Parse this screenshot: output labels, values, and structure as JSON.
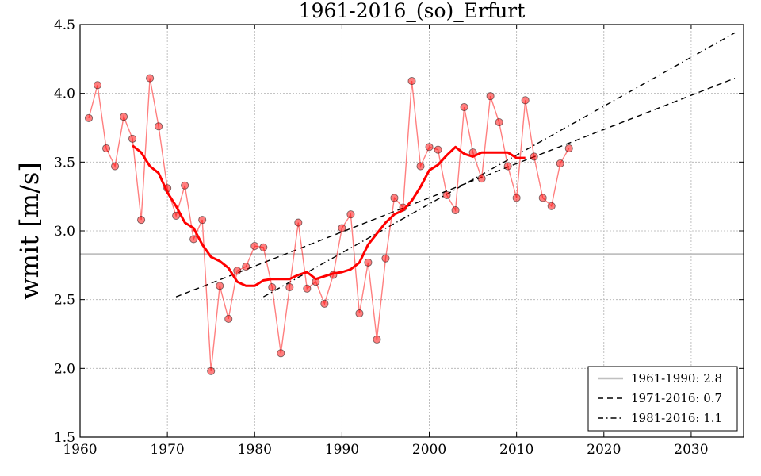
{
  "chart_data": {
    "type": "line",
    "title": "1961-2016_(so)_Erfurt",
    "xlabel": "",
    "ylabel": "wmit [m/s]",
    "xlim": [
      1960,
      2036
    ],
    "ylim": [
      1.5,
      4.5
    ],
    "xticks": [
      "1960",
      "1970",
      "1980",
      "1990",
      "2000",
      "2010",
      "2020",
      "2030"
    ],
    "yticks": [
      "1.5",
      "2.0",
      "2.5",
      "3.0",
      "3.5",
      "4.0",
      "4.5"
    ],
    "grid": true,
    "legend_position": "bottom-right",
    "series": [
      {
        "style": "markers-line",
        "color": "#ff0000",
        "x": [
          1961,
          1962,
          1963,
          1964,
          1965,
          1966,
          1967,
          1968,
          1969,
          1970,
          1971,
          1972,
          1973,
          1974,
          1975,
          1976,
          1977,
          1978,
          1979,
          1980,
          1981,
          1982,
          1983,
          1984,
          1985,
          1986,
          1987,
          1988,
          1989,
          1990,
          1991,
          1992,
          1993,
          1994,
          1995,
          1996,
          1997,
          1998,
          1999,
          2000,
          2001,
          2002,
          2003,
          2004,
          2005,
          2006,
          2007,
          2008,
          2009,
          2010,
          2011,
          2012,
          2013,
          2014,
          2015,
          2016
        ],
        "values": [
          3.82,
          4.06,
          3.6,
          3.47,
          3.83,
          3.67,
          3.08,
          4.11,
          3.76,
          3.31,
          3.11,
          3.33,
          2.94,
          3.08,
          1.98,
          2.6,
          2.36,
          2.71,
          2.74,
          2.89,
          2.88,
          2.59,
          2.11,
          2.59,
          3.06,
          2.58,
          2.63,
          2.47,
          2.68,
          3.02,
          3.12,
          2.4,
          2.77,
          2.21,
          2.8,
          3.24,
          3.17,
          4.09,
          3.47,
          3.61,
          3.59,
          3.26,
          3.15,
          3.9,
          3.57,
          3.38,
          3.98,
          3.79,
          3.47,
          3.24,
          3.95,
          3.54,
          3.24,
          3.18,
          3.49,
          3.6
        ]
      },
      {
        "style": "moving-average",
        "color": "#ff0000",
        "x": [
          1966,
          1967,
          1968,
          1969,
          1970,
          1971,
          1972,
          1973,
          1974,
          1975,
          1976,
          1977,
          1978,
          1979,
          1980,
          1981,
          1982,
          1983,
          1984,
          1985,
          1986,
          1987,
          1988,
          1989,
          1990,
          1991,
          1992,
          1993,
          1994,
          1995,
          1996,
          1997,
          1998,
          1999,
          2000,
          2001,
          2002,
          2003,
          2004,
          2005,
          2006,
          2007,
          2008,
          2009,
          2010,
          2011
        ],
        "values": [
          3.62,
          3.57,
          3.47,
          3.42,
          3.28,
          3.18,
          3.06,
          3.02,
          2.9,
          2.81,
          2.78,
          2.73,
          2.63,
          2.6,
          2.6,
          2.64,
          2.65,
          2.65,
          2.65,
          2.68,
          2.7,
          2.65,
          2.67,
          2.69,
          2.7,
          2.72,
          2.77,
          2.9,
          2.98,
          3.06,
          3.12,
          3.15,
          3.22,
          3.32,
          3.44,
          3.48,
          3.55,
          3.61,
          3.56,
          3.54,
          3.57,
          3.57,
          3.57,
          3.57,
          3.53,
          3.53
        ]
      },
      {
        "name": "1961-1990: 2.8",
        "style": "solid",
        "color": "#c0c0c0",
        "x": [
          1960,
          2036
        ],
        "values": [
          2.83,
          2.83
        ]
      },
      {
        "name": "1971-2016: 0.7",
        "style": "dashed",
        "color": "#000000",
        "x": [
          1971,
          2035
        ],
        "values": [
          2.52,
          4.11
        ]
      },
      {
        "name": "1981-2016: 1.1",
        "style": "dashdot",
        "color": "#000000",
        "x": [
          1981,
          2035
        ],
        "values": [
          2.52,
          4.44
        ]
      }
    ]
  }
}
